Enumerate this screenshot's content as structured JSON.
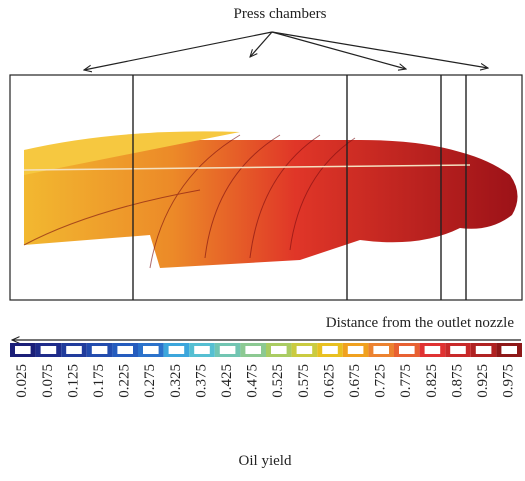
{
  "header": {
    "title": "Press chambers"
  },
  "axis": {
    "label": "Distance from the outlet nozzle"
  },
  "colorbar": {
    "title": "Oil yield",
    "ticks": [
      "0.025",
      "0.075",
      "0.125",
      "0.175",
      "0.225",
      "0.275",
      "0.325",
      "0.375",
      "0.425",
      "0.475",
      "0.525",
      "0.575",
      "0.625",
      "0.675",
      "0.725",
      "0.775",
      "0.825",
      "0.875",
      "0.925",
      "0.975"
    ],
    "colors": [
      "#1b1f78",
      "#1f2c8a",
      "#213c9c",
      "#234cae",
      "#255cbe",
      "#2b72cb",
      "#3ca6dc",
      "#55bfd2",
      "#72c5b2",
      "#8cc992",
      "#aacc62",
      "#cacb40",
      "#e8c020",
      "#f0a11f",
      "#ec8230",
      "#e86132",
      "#e03232",
      "#c82a2a",
      "#b02222",
      "#8e1818"
    ]
  }
}
